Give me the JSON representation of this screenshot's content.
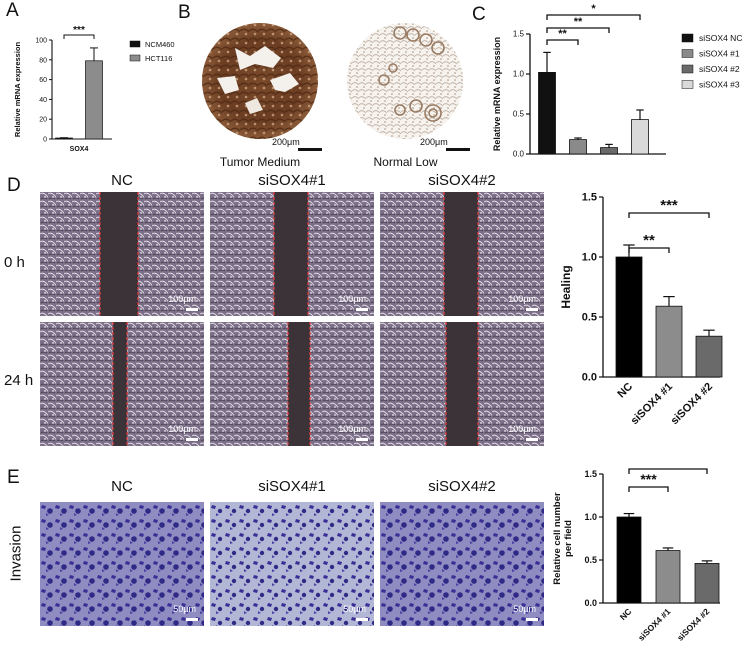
{
  "panel_labels": {
    "a": "A",
    "b": "B",
    "c": "C",
    "d": "D",
    "e": "E"
  },
  "panel_b": {
    "tumor_caption": "Tumor Medium",
    "normal_caption": "Normal Low",
    "scale": "200μm"
  },
  "panel_d": {
    "headers": [
      "NC",
      "siSOX4#1",
      "siSOX4#2"
    ],
    "rows": [
      "0 h",
      "24 h"
    ],
    "scale": "100μm"
  },
  "panel_e": {
    "headers": [
      "NC",
      "siSOX4#1",
      "siSOX4#2"
    ],
    "row": "Invasion",
    "scale": "50μm"
  },
  "chart_data": [
    {
      "id": "A",
      "type": "bar",
      "ylabel": "Relative mRNA expression",
      "ylim": [
        0,
        100
      ],
      "yticks": [
        0,
        20,
        40,
        60,
        80,
        100
      ],
      "categories": [
        "SOX4"
      ],
      "series": [
        {
          "name": "NCM460",
          "values": [
            1.0
          ],
          "error": [
            0.3
          ],
          "color": "#111111"
        },
        {
          "name": "HCT116",
          "values": [
            79
          ],
          "error": [
            13
          ],
          "color": "#8c8c8c"
        }
      ],
      "significance": [
        {
          "between": [
            "NCM460",
            "HCT116"
          ],
          "label": "***"
        }
      ],
      "legend_placement": "right"
    },
    {
      "id": "C",
      "type": "bar",
      "ylabel": "Relative mRNA expression",
      "ylim": [
        0,
        1.5
      ],
      "yticks": [
        0.0,
        0.5,
        1.0,
        1.5
      ],
      "categories": [
        "siSOX4 NC",
        "siSOX4 #1",
        "siSOX4 #2",
        "siSOX4 #3"
      ],
      "values": [
        1.02,
        0.18,
        0.08,
        0.43
      ],
      "errors": [
        0.25,
        0.02,
        0.04,
        0.12
      ],
      "colors": [
        "#111111",
        "#8a8a8a",
        "#6a6a6a",
        "#d9d9d9"
      ],
      "significance": [
        {
          "between": [
            0,
            1
          ],
          "label": "**"
        },
        {
          "between": [
            0,
            2
          ],
          "label": "**"
        },
        {
          "between": [
            0,
            3
          ],
          "label": "*"
        }
      ],
      "legend_placement": "right"
    },
    {
      "id": "D",
      "type": "bar",
      "ylabel": "Healing",
      "ylim": [
        0,
        1.5
      ],
      "yticks": [
        0.0,
        0.5,
        1.0,
        1.5
      ],
      "categories": [
        "NC",
        "siSOX4 #1",
        "siSOX4 #2"
      ],
      "values": [
        1.0,
        0.59,
        0.34
      ],
      "errors": [
        0.1,
        0.08,
        0.05
      ],
      "colors": [
        "#000000",
        "#8c8c8c",
        "#6a6a6a"
      ],
      "significance": [
        {
          "between": [
            0,
            1
          ],
          "label": "**"
        },
        {
          "between": [
            0,
            2
          ],
          "label": "***"
        }
      ]
    },
    {
      "id": "E",
      "type": "bar",
      "ylabel": "Relative cell number per field",
      "ylim": [
        0,
        1.5
      ],
      "yticks": [
        0.0,
        0.5,
        1.0,
        1.5
      ],
      "categories": [
        "NC",
        "siSOX4 #1",
        "siSOX4 #2"
      ],
      "values": [
        1.0,
        0.61,
        0.46
      ],
      "errors": [
        0.04,
        0.03,
        0.03
      ],
      "colors": [
        "#000000",
        "#8c8c8c",
        "#6a6a6a"
      ],
      "significance": [
        {
          "between": [
            0,
            1
          ],
          "label": "***"
        },
        {
          "between": [
            0,
            2
          ],
          "label": "***"
        }
      ]
    }
  ]
}
